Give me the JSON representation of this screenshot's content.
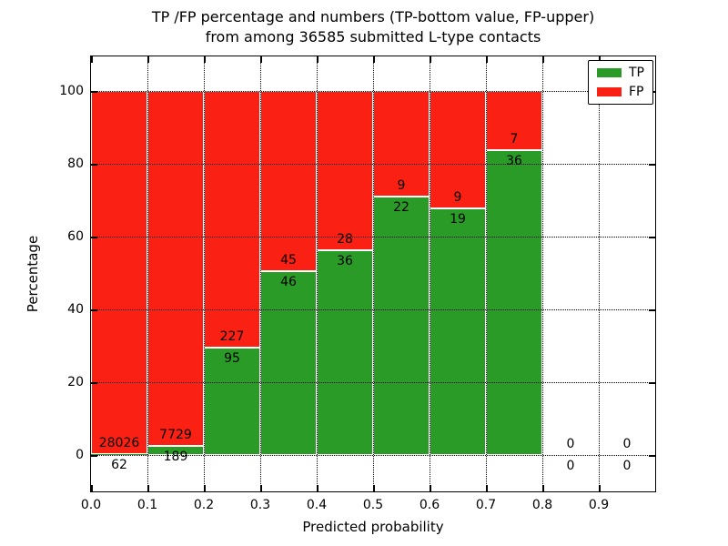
{
  "title": {
    "line1": "TP /FP percentage and numbers (TP-bottom value, FP-upper)",
    "line2": "from among 36585 submitted L-type contacts"
  },
  "chart_data": {
    "type": "bar",
    "stacked": true,
    "title": "TP /FP percentage and numbers (TP-bottom value, FP-upper) from among 36585 submitted L-type contacts",
    "xlabel": "Predicted probability",
    "ylabel": "Percentage",
    "total_submitted": 36585,
    "bin_starts": [
      0.0,
      0.1,
      0.2,
      0.3,
      0.4,
      0.5,
      0.6,
      0.7,
      0.8,
      0.9
    ],
    "bin_width": 0.1,
    "series": [
      {
        "name": "TP",
        "color": "#2a9b27",
        "counts": [
          62,
          189,
          95,
          46,
          36,
          22,
          19,
          36,
          0,
          0
        ]
      },
      {
        "name": "FP",
        "color": "#fb2014",
        "counts": [
          28026,
          7729,
          227,
          45,
          28,
          9,
          9,
          7,
          0,
          0
        ]
      }
    ],
    "tp_percent_of_bin": [
      0.22,
      2.39,
      29.5,
      50.55,
      56.25,
      70.97,
      67.86,
      83.72,
      null,
      null
    ],
    "x_tick_labels": [
      "0.0",
      "0.1",
      "0.2",
      "0.3",
      "0.4",
      "0.5",
      "0.6",
      "0.7",
      "0.8",
      "0.9"
    ],
    "y_tick_labels": [
      "0",
      "20",
      "40",
      "60",
      "80",
      "100"
    ],
    "y_tick_values": [
      0,
      20,
      40,
      60,
      80,
      100
    ],
    "xlim": [
      0.0,
      1.0
    ],
    "ylim": [
      -10,
      110
    ],
    "grid": "dotted",
    "bar_edge_color": "#ffffff",
    "legend": {
      "position": "upper right",
      "items": [
        "TP",
        "FP"
      ]
    }
  }
}
